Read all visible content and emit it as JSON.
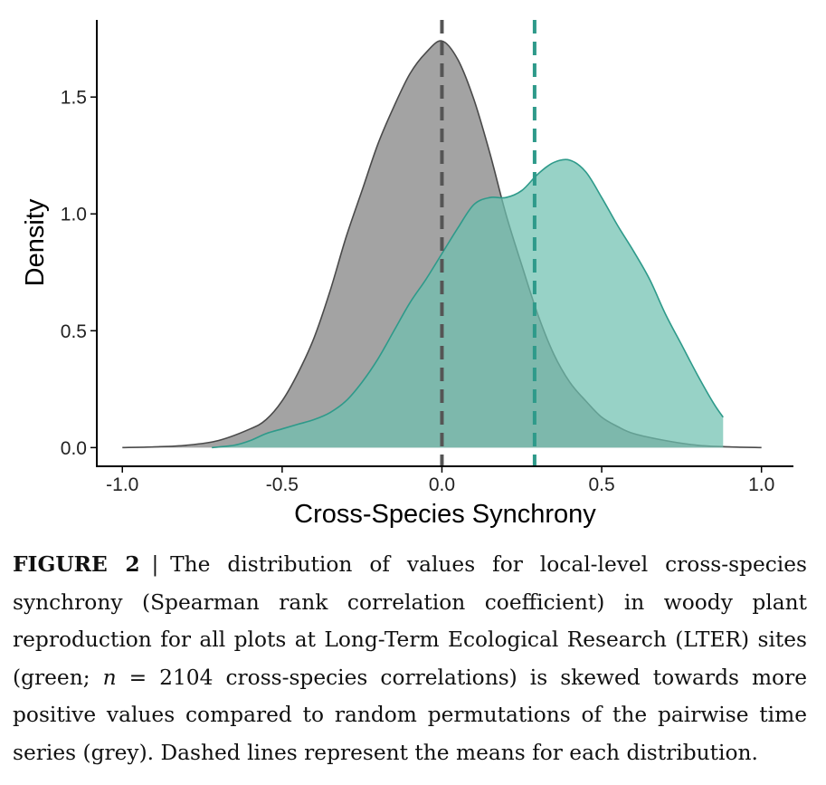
{
  "chart_data": {
    "type": "area",
    "xlabel": "Cross-Species Synchrony",
    "ylabel": "Density",
    "xlim": [
      -1.08,
      1.1
    ],
    "ylim": [
      -0.08,
      1.83
    ],
    "x_ticks": [
      -1.0,
      -0.5,
      0.0,
      0.5,
      1.0
    ],
    "x_tick_labels": [
      "-1.0",
      "-0.5",
      "0.0",
      "0.5",
      "1.0"
    ],
    "y_ticks": [
      0.0,
      0.5,
      1.0,
      1.5
    ],
    "y_tick_labels": [
      "0.0",
      "0.5",
      "1.0",
      "1.5"
    ],
    "grid": false,
    "series": [
      {
        "color": "#9e9e9e",
        "line_color": "#4a4a4a",
        "opacity": 0.95,
        "x": [
          -1.0,
          -0.9,
          -0.8,
          -0.7,
          -0.6,
          -0.55,
          -0.5,
          -0.45,
          -0.4,
          -0.35,
          -0.3,
          -0.25,
          -0.2,
          -0.15,
          -0.1,
          -0.05,
          0.0,
          0.05,
          0.1,
          0.15,
          0.2,
          0.25,
          0.3,
          0.35,
          0.4,
          0.45,
          0.5,
          0.55,
          0.6,
          0.7,
          0.8,
          0.9,
          1.0
        ],
        "y": [
          0.0,
          0.003,
          0.01,
          0.03,
          0.08,
          0.12,
          0.2,
          0.32,
          0.47,
          0.67,
          0.9,
          1.1,
          1.3,
          1.46,
          1.6,
          1.69,
          1.74,
          1.66,
          1.49,
          1.26,
          1.0,
          0.78,
          0.57,
          0.4,
          0.28,
          0.2,
          0.13,
          0.09,
          0.06,
          0.03,
          0.01,
          0.003,
          0.0
        ]
      },
      {
        "color": "#6fc0b0",
        "line_color": "#2e9a8a",
        "opacity": 0.72,
        "x": [
          -0.72,
          -0.65,
          -0.6,
          -0.55,
          -0.5,
          -0.45,
          -0.4,
          -0.35,
          -0.3,
          -0.25,
          -0.2,
          -0.15,
          -0.1,
          -0.05,
          0.0,
          0.05,
          0.1,
          0.15,
          0.2,
          0.25,
          0.3,
          0.35,
          0.4,
          0.45,
          0.5,
          0.55,
          0.6,
          0.65,
          0.7,
          0.75,
          0.8,
          0.85,
          0.88
        ],
        "y": [
          0.0,
          0.01,
          0.03,
          0.06,
          0.08,
          0.1,
          0.12,
          0.15,
          0.2,
          0.28,
          0.38,
          0.5,
          0.62,
          0.72,
          0.83,
          0.94,
          1.04,
          1.07,
          1.07,
          1.1,
          1.17,
          1.22,
          1.23,
          1.18,
          1.07,
          0.95,
          0.84,
          0.72,
          0.57,
          0.44,
          0.31,
          0.19,
          0.13
        ]
      }
    ],
    "mean_lines": [
      {
        "x": 0.0,
        "color": "#555555"
      },
      {
        "x": 0.29,
        "color": "#2e9a8a"
      }
    ]
  },
  "caption": {
    "label": "FIGURE 2",
    "separator": "|",
    "text_1": "The distribution of values for local-level cross-species synchrony (Spearman rank correlation coefficient) in woody plant reproduction for all plots at Long-Term Ecological Research (LTER) sites (green; ",
    "n_symbol": "n",
    "n_eq": " = 2104",
    "text_2": " cross-species correlations) is skewed towards more positive values compared to random permutations of the pairwise time series (grey). Dashed lines represent the means for each distribution."
  }
}
